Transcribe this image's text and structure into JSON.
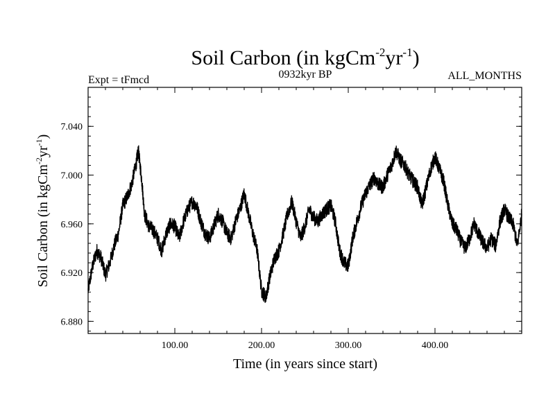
{
  "chart_data": {
    "type": "line",
    "title": "Soil Carbon (in kgCm",
    "title_sup1": "-2",
    "title_mid": "yr",
    "title_sup2": "-1",
    "title_end": ")",
    "left_label": "Expt = tFmcd",
    "center_label": "0932kyr BP",
    "right_label": "ALL_MONTHS",
    "xlabel": "Time (in years since start)",
    "ylabel": "Soil Carbon (in kgCm",
    "ylabel_sup1": "-2",
    "ylabel_mid": "yr",
    "ylabel_sup2": "-1",
    "ylabel_end": ")",
    "xlim": [
      0,
      500
    ],
    "ylim": [
      6.87,
      7.072
    ],
    "x_ticks": [
      100,
      200,
      300,
      400
    ],
    "x_tick_labels": [
      "100.00",
      "200.00",
      "300.00",
      "400.00"
    ],
    "y_ticks": [
      6.88,
      6.92,
      6.96,
      7.0,
      7.04
    ],
    "y_tick_labels": [
      "6.880",
      "6.920",
      "6.960",
      "7.000",
      "7.040"
    ],
    "series": [
      {
        "name": "Soil Carbon",
        "color": "#000000",
        "x": [
          0,
          5,
          10,
          15,
          20,
          25,
          30,
          35,
          40,
          45,
          50,
          55,
          58,
          62,
          65,
          70,
          75,
          80,
          85,
          90,
          95,
          100,
          105,
          110,
          115,
          120,
          125,
          130,
          135,
          140,
          145,
          150,
          155,
          160,
          165,
          170,
          175,
          180,
          185,
          190,
          195,
          200,
          205,
          210,
          215,
          220,
          225,
          230,
          235,
          240,
          245,
          250,
          255,
          260,
          265,
          270,
          275,
          280,
          285,
          290,
          295,
          300,
          305,
          310,
          315,
          320,
          325,
          330,
          335,
          340,
          345,
          350,
          355,
          360,
          365,
          370,
          375,
          380,
          385,
          390,
          395,
          400,
          405,
          410,
          415,
          420,
          425,
          430,
          435,
          440,
          445,
          450,
          455,
          460,
          465,
          470,
          475,
          480,
          485,
          490,
          495,
          500
        ],
        "y": [
          6.905,
          6.925,
          6.938,
          6.932,
          6.918,
          6.928,
          6.942,
          6.952,
          6.975,
          6.982,
          6.992,
          7.008,
          7.02,
          6.995,
          6.968,
          6.958,
          6.955,
          6.948,
          6.938,
          6.952,
          6.96,
          6.958,
          6.948,
          6.962,
          6.972,
          6.978,
          6.975,
          6.962,
          6.952,
          6.948,
          6.958,
          6.968,
          6.962,
          6.952,
          6.948,
          6.962,
          6.972,
          6.985,
          6.968,
          6.952,
          6.938,
          6.905,
          6.9,
          6.918,
          6.932,
          6.938,
          6.952,
          6.968,
          6.978,
          6.962,
          6.948,
          6.958,
          6.972,
          6.965,
          6.962,
          6.968,
          6.972,
          6.975,
          6.962,
          6.938,
          6.928,
          6.925,
          6.948,
          6.962,
          6.975,
          6.985,
          6.992,
          6.998,
          6.992,
          6.99,
          7.0,
          7.008,
          7.02,
          7.012,
          7.008,
          7.0,
          6.995,
          6.99,
          6.975,
          6.99,
          7.005,
          7.015,
          7.005,
          6.995,
          6.975,
          6.96,
          6.955,
          6.945,
          6.94,
          6.948,
          6.96,
          6.952,
          6.945,
          6.94,
          6.948,
          6.942,
          6.962,
          6.972,
          6.965,
          6.96,
          6.942,
          6.968
        ]
      }
    ]
  }
}
